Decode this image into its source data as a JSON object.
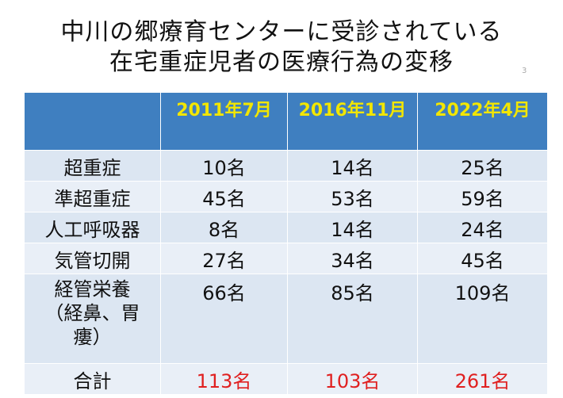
{
  "title": {
    "line1": "中川の郷療育センターに受診されている",
    "line2": "在宅重症児者の医療行為の変移"
  },
  "table": {
    "headers": [
      "",
      "2011年7月",
      "2016年11月",
      "2022年4月"
    ],
    "rows": [
      {
        "label": "超重症",
        "values": [
          "10名",
          "14名",
          "25名"
        ]
      },
      {
        "label": "準超重症",
        "values": [
          "45名",
          "53名",
          "59名"
        ]
      },
      {
        "label": "人工呼吸器",
        "values": [
          "8名",
          "14名",
          "24名"
        ]
      },
      {
        "label": "気管切開",
        "values": [
          "27名",
          "34名",
          "45名"
        ]
      },
      {
        "label_lines": [
          "経管栄養",
          "（経鼻、胃",
          "瘻）"
        ],
        "values": [
          "66名",
          "85名",
          "109名"
        ]
      }
    ],
    "total": {
      "label": "合計",
      "values": [
        "113名",
        "103名",
        "261名"
      ]
    }
  },
  "colors": {
    "header_bg": "#3f7fc0",
    "header_text": "#f2e600",
    "row_bg": "#dce6f2",
    "total_text": "#e02020"
  }
}
